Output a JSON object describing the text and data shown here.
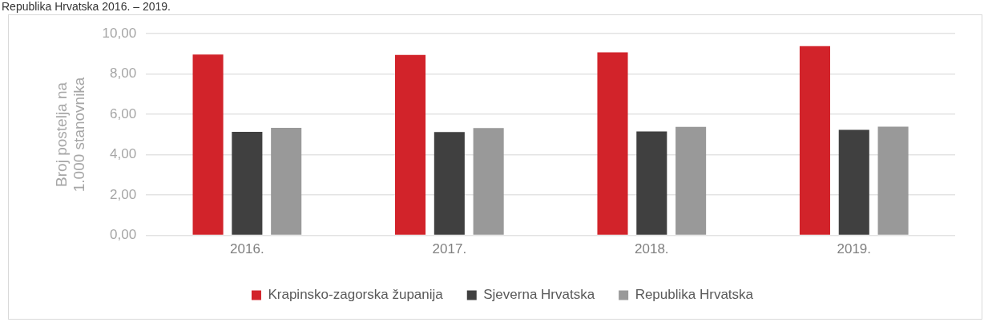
{
  "chart_data": {
    "type": "bar",
    "title": "Republika Hrvatska 2016. – 2019.",
    "ylabel": "Broj postelja na 1.000 stanovnika",
    "categories": [
      "2016.",
      "2017.",
      "2018.",
      "2019."
    ],
    "series": [
      {
        "name": "Krapinsko-zagorska županija",
        "color": "#d2232a",
        "values": [
          8.97,
          8.95,
          9.08,
          9.38
        ]
      },
      {
        "name": "Sjeverna Hrvatska",
        "color": "#404040",
        "values": [
          5.13,
          5.12,
          5.15,
          5.23
        ]
      },
      {
        "name": "Republika Hrvatska",
        "color": "#999999",
        "values": [
          5.33,
          5.32,
          5.38,
          5.39
        ]
      }
    ],
    "ylim": [
      0,
      10
    ],
    "yticks": [
      {
        "value": 0,
        "label": "0,00"
      },
      {
        "value": 2,
        "label": "2,00"
      },
      {
        "value": 4,
        "label": "4,00"
      },
      {
        "value": 6,
        "label": "6,00"
      },
      {
        "value": 8,
        "label": "8,00"
      },
      {
        "value": 10,
        "label": "10,00"
      }
    ],
    "grid": "y",
    "legend": "bottom"
  }
}
